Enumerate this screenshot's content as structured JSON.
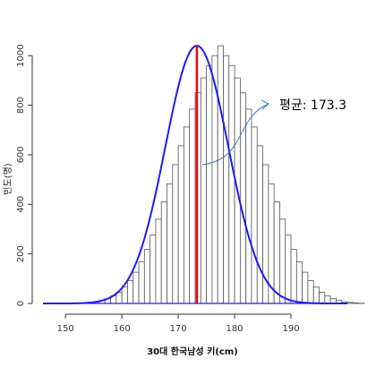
{
  "chart_data": {
    "type": "bar",
    "title": "",
    "xlabel": "30대 한국남성 키(cm)",
    "ylabel": "빈도(명)",
    "xlim": [
      146,
      200
    ],
    "ylim": [
      0,
      1080
    ],
    "x_ticks": [
      150,
      160,
      170,
      180,
      190
    ],
    "y_ticks": [
      0,
      200,
      400,
      600,
      800,
      1000
    ],
    "bin_width": 1,
    "bins_start": 152,
    "counts": [
      1,
      2,
      4,
      7,
      12,
      19,
      30,
      45,
      66,
      92,
      126,
      168,
      218,
      276,
      340,
      410,
      483,
      560,
      636,
      712,
      784,
      850,
      910,
      960,
      1000,
      1040,
      1000,
      960,
      910,
      850,
      784,
      712,
      636,
      560,
      483,
      410,
      340,
      276,
      218,
      168,
      126,
      92,
      66,
      45,
      30,
      19,
      12,
      7,
      4,
      2,
      1,
      0
    ],
    "density_curve": {
      "name": "",
      "color": "#1a1aff",
      "mean": 173.3,
      "sd": 5.6,
      "peak": 1040
    },
    "mean_line": {
      "x": 173.3,
      "color": "#ff0000"
    },
    "annotation": {
      "text": "평균: 173.3",
      "arrow_color": "#3a7bbf"
    },
    "bar_fill": "#ffffff",
    "bar_stroke": "#555555",
    "grid": false
  }
}
